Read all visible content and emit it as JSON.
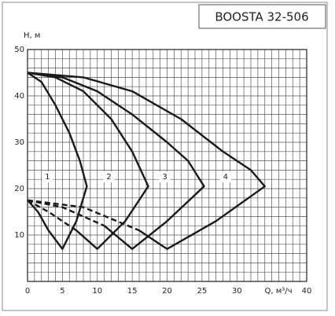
{
  "chart_data": {
    "type": "line",
    "title": "BOOSTA 32-506",
    "y_label": "H, м",
    "x_label": "Q, м³/ч",
    "xlim": [
      0,
      40
    ],
    "ylim": [
      0,
      50
    ],
    "xticks": [
      0,
      5,
      10,
      15,
      20,
      25,
      30,
      40
    ],
    "yticks": [
      10,
      20,
      30,
      40,
      50
    ],
    "grid": true,
    "grid_step": [
      1,
      2
    ],
    "color": "#1a1a1a",
    "series": [
      {
        "name": "1",
        "style": "solid",
        "x": [
          0,
          2,
          4,
          6,
          7.5,
          8.5,
          7,
          5,
          3,
          1.5,
          0
        ],
        "values": [
          45,
          43,
          38,
          32,
          26,
          20.5,
          13,
          7,
          11,
          15,
          17.5
        ]
      },
      {
        "name": "2",
        "style": "solid",
        "x": [
          0,
          4,
          8,
          12,
          15,
          17.3,
          14,
          10,
          7
        ],
        "values": [
          45,
          44,
          41,
          35,
          28,
          20.5,
          13,
          7,
          11
        ]
      },
      {
        "style": "dashed",
        "x": [
          0,
          3,
          7
        ],
        "values": [
          17.5,
          15,
          11
        ]
      },
      {
        "name": "3",
        "style": "solid",
        "x": [
          0,
          5,
          10,
          15,
          20,
          23,
          25.3,
          20,
          15,
          11
        ],
        "values": [
          45,
          44,
          41,
          36,
          30,
          26,
          20.5,
          13,
          7,
          12
        ]
      },
      {
        "style": "dashed",
        "x": [
          0,
          5,
          11
        ],
        "values": [
          17.5,
          16,
          12
        ]
      },
      {
        "name": "4",
        "style": "solid",
        "x": [
          0,
          8,
          15,
          22,
          28,
          32,
          34,
          27,
          20,
          16
        ],
        "values": [
          45,
          44,
          41,
          35,
          28,
          24,
          20.5,
          13,
          7,
          11
        ]
      },
      {
        "style": "dashed",
        "x": [
          0,
          8,
          16
        ],
        "values": [
          17.5,
          16,
          11
        ]
      }
    ]
  }
}
